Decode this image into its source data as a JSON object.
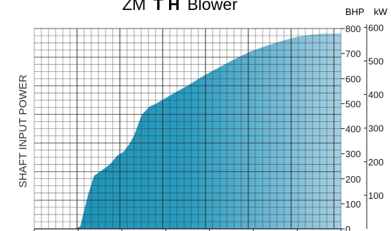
{
  "chart_data": {
    "type": "area",
    "title_prefix": "ZM",
    "title_bold": "T H",
    "title_suffix": "Blower",
    "ylabel": "SHAFT INPUT POWER",
    "units": {
      "primary": "BHP",
      "secondary": "kW"
    },
    "ylim": [
      0,
      800
    ],
    "yticks": [
      0,
      100,
      200,
      300,
      400,
      500,
      600,
      700,
      800
    ],
    "ytick_labels": [
      "0",
      "100",
      "200",
      "300",
      "400",
      "500",
      "600",
      "700",
      "800"
    ],
    "kw_ticks": [
      100,
      200,
      300,
      400,
      500,
      600
    ],
    "kw_tick_labels": [
      "100",
      "200",
      "300",
      "400",
      "500",
      "600"
    ],
    "kw_per_bhp": 0.7457,
    "grid": true,
    "colors": {
      "area_dark": "#1a90b5",
      "area_light": "#a6cfe3",
      "grid": "#2a2a2a",
      "text": "#1a1a1a"
    },
    "series": [
      {
        "x": [
          0.0,
          0.025,
          0.05,
          0.08,
          0.1,
          0.12,
          0.1325,
          0.15,
          0.175,
          0.195,
          0.23,
          0.25,
          0.27,
          0.29,
          0.3,
          0.31,
          0.325,
          0.35,
          0.375,
          0.4,
          0.45,
          0.5,
          0.55,
          0.6,
          0.65,
          0.7,
          0.75,
          0.8,
          0.85,
          0.9,
          0.95,
          1.0
        ],
        "values": [
          0,
          0,
          0,
          0,
          0,
          0,
          0,
          10,
          135,
          212,
          242,
          262,
          292,
          307,
          322,
          338,
          372,
          455,
          488,
          502,
          538,
          572,
          610,
          643,
          676,
          706,
          728,
          748,
          765,
          775,
          780,
          780
        ]
      }
    ]
  }
}
